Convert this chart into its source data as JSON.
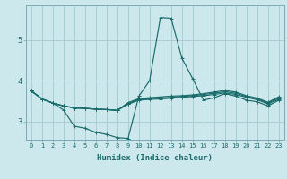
{
  "title": "",
  "xlabel": "Humidex (Indice chaleur)",
  "background_color": "#cce8ec",
  "grid_color": "#aacdd4",
  "line_color": "#1a6b6b",
  "x_ticks": [
    0,
    1,
    2,
    3,
    4,
    5,
    6,
    7,
    8,
    9,
    10,
    11,
    12,
    13,
    14,
    15,
    16,
    17,
    18,
    19,
    20,
    21,
    22,
    23
  ],
  "y_ticks": [
    3,
    4,
    5
  ],
  "ylim": [
    2.55,
    5.85
  ],
  "xlim": [
    -0.5,
    23.5
  ],
  "series": [
    [
      3.75,
      3.55,
      3.45,
      3.28,
      2.88,
      2.83,
      2.73,
      2.68,
      2.6,
      2.58,
      3.62,
      4.0,
      5.55,
      5.53,
      4.55,
      4.05,
      3.52,
      3.58,
      3.68,
      3.62,
      3.52,
      3.48,
      3.38,
      3.52
    ],
    [
      3.75,
      3.55,
      3.45,
      3.38,
      3.33,
      3.32,
      3.3,
      3.29,
      3.27,
      3.42,
      3.52,
      3.54,
      3.55,
      3.57,
      3.59,
      3.61,
      3.63,
      3.66,
      3.7,
      3.66,
      3.59,
      3.53,
      3.43,
      3.54
    ],
    [
      3.75,
      3.55,
      3.45,
      3.38,
      3.33,
      3.32,
      3.3,
      3.29,
      3.27,
      3.44,
      3.54,
      3.56,
      3.57,
      3.59,
      3.61,
      3.63,
      3.66,
      3.69,
      3.73,
      3.69,
      3.61,
      3.55,
      3.45,
      3.57
    ],
    [
      3.75,
      3.55,
      3.45,
      3.38,
      3.33,
      3.32,
      3.3,
      3.29,
      3.27,
      3.46,
      3.56,
      3.58,
      3.6,
      3.62,
      3.63,
      3.65,
      3.68,
      3.72,
      3.76,
      3.72,
      3.63,
      3.57,
      3.47,
      3.6
    ]
  ]
}
